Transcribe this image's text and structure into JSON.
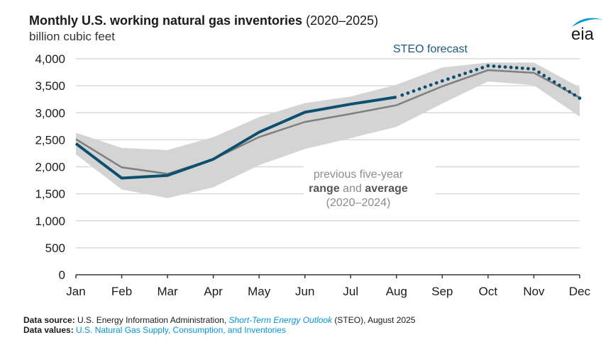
{
  "header": {
    "title_bold": "Monthly U.S. working natural gas inventories",
    "title_years": "(2020–2025)",
    "subtitle": "billion cubic feet",
    "logo_text": "eia",
    "logo_icon": "eia-arc-logo"
  },
  "annotations": {
    "forecast_label": "STEO forecast",
    "range_line1": "previous five-year",
    "range_bold1": "range",
    "range_and": " and ",
    "range_bold2": "average",
    "range_line3": "(2020–2024)"
  },
  "footer": {
    "source_label": "Data source:",
    "source_text_1": " U.S. Energy Information Administration, ",
    "source_link": "Short-Term Energy Outlook",
    "source_text_2": " (STEO), August 2025",
    "values_label": "Data values:",
    "values_link": " U.S. Natural Gas Supply, Consumption, and Inventories"
  },
  "colors": {
    "actual": "#0d4f6e",
    "average": "#7f7f7f",
    "range": "#d4d4d4",
    "grid": "#d9d9d9",
    "annotation_blue": "#1a5a7a",
    "annotation_gray": "#8c8c8c",
    "logo_arc": "#0096d6"
  },
  "chart_data": {
    "type": "line",
    "title": "Monthly U.S. working natural gas inventories (2020–2025)",
    "ylabel": "billion cubic feet",
    "xlabel": "",
    "categories": [
      "Jan",
      "Feb",
      "Mar",
      "Apr",
      "May",
      "Jun",
      "Jul",
      "Aug",
      "Sep",
      "Oct",
      "Nov",
      "Dec"
    ],
    "ylim": [
      0,
      4000
    ],
    "yticks": [
      0,
      500,
      1000,
      1500,
      2000,
      2500,
      3000,
      3500,
      4000
    ],
    "ytick_labels": [
      "0",
      "500",
      "1,000",
      "1,500",
      "2,000",
      "2,500",
      "3,000",
      "3,500",
      "4,000"
    ],
    "grid": true,
    "series": [
      {
        "name": "2025 actual",
        "style": "solid",
        "values": [
          2430,
          1790,
          1840,
          2140,
          2640,
          3010,
          3160,
          3290,
          null,
          null,
          null,
          null
        ]
      },
      {
        "name": "STEO forecast",
        "style": "dotted",
        "values": [
          null,
          null,
          null,
          null,
          null,
          null,
          null,
          3290,
          3590,
          3870,
          3810,
          3270
        ]
      },
      {
        "name": "previous five-year average (2020–2024)",
        "style": "solid",
        "values": [
          2510,
          1990,
          1870,
          2140,
          2550,
          2830,
          2980,
          3140,
          3490,
          3790,
          3740,
          3280
        ]
      }
    ],
    "range": {
      "name": "previous five-year range (2020–2024)",
      "high": [
        2630,
        2350,
        2310,
        2550,
        2920,
        3180,
        3300,
        3520,
        3840,
        3930,
        3930,
        3470
      ],
      "low": [
        2230,
        1580,
        1420,
        1620,
        2030,
        2330,
        2530,
        2740,
        3170,
        3580,
        3510,
        2930
      ]
    }
  }
}
